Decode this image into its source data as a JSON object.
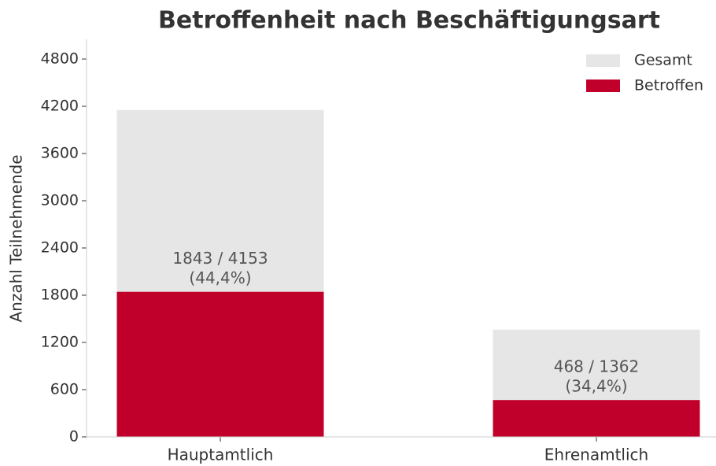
{
  "chart_data": {
    "type": "bar",
    "title": "Betroffenheit nach Beschäftigungsart",
    "y_label": "Anzahl Teilnehmende",
    "categories": [
      "Hauptamtlich",
      "Ehrenamtlich"
    ],
    "series": [
      {
        "name": "Gesamt",
        "color": "#e6e6e6",
        "values": [
          4153,
          1362
        ]
      },
      {
        "name": "Betroffen",
        "color": "#c0002a",
        "values": [
          1843,
          468
        ]
      }
    ],
    "annotations": [
      [
        "1843 / 4153",
        "(44,4%)"
      ],
      [
        "468 / 1362",
        "(34,4%)"
      ]
    ],
    "ylim": [
      0,
      5000
    ],
    "yticks": [
      0,
      600,
      1200,
      1800,
      2400,
      3000,
      3600,
      4200,
      4800
    ],
    "legend": "upper right",
    "grid": false
  }
}
